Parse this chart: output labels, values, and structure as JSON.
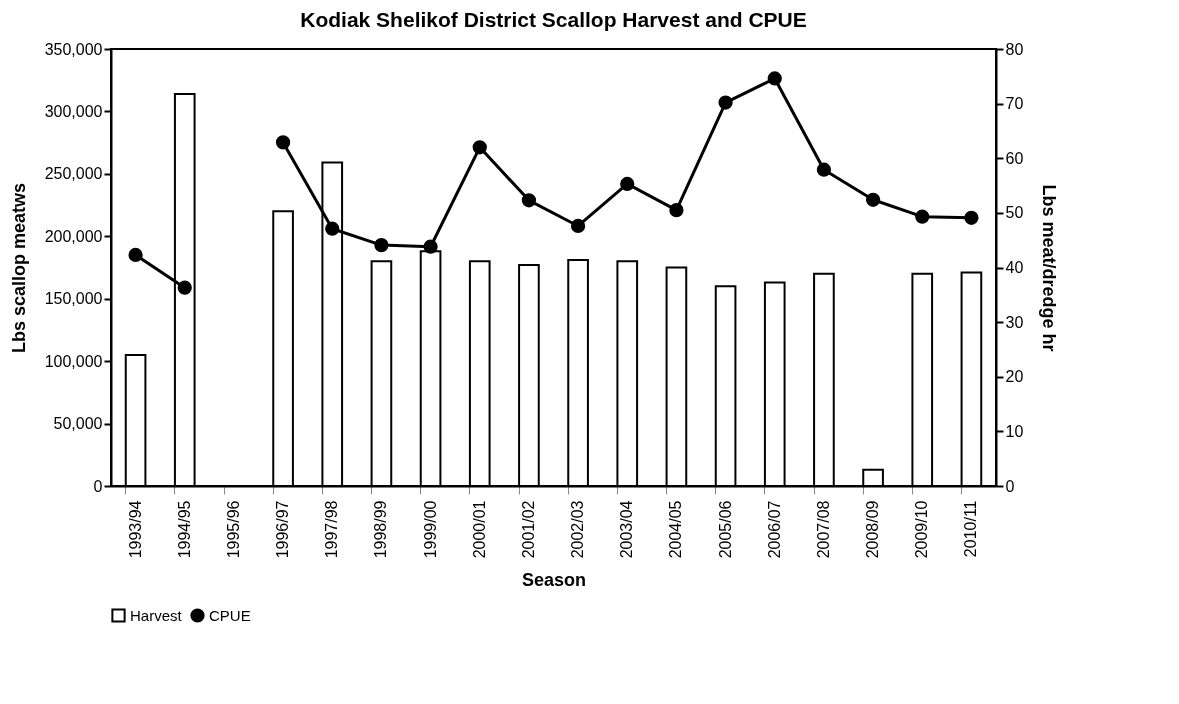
{
  "chart_data": {
    "type": "bar",
    "title": "Kodiak Shelikof District Scallop Harvest and CPUE",
    "xlabel": "Season",
    "ylabel": "Lbs scallop meatws",
    "y2label": "Lbs meat/dredge hr",
    "categories": [
      "1993/94",
      "1994/95",
      "1995/96",
      "1996/97",
      "1997/98",
      "1998/99",
      "1999/00",
      "2000/01",
      "2001/02",
      "2002/03",
      "2003/04",
      "2004/05",
      "2005/06",
      "2006/07",
      "2007/08",
      "2008/09",
      "2009/10",
      "2010/11"
    ],
    "series": [
      {
        "name": "Harvest",
        "color": "#ffffff",
        "values": [
          105000,
          314000,
          null,
          220000,
          259000,
          180000,
          188000,
          180000,
          177000,
          181000,
          180000,
          175000,
          160000,
          163000,
          170000,
          13000,
          170000,
          171000
        ]
      },
      {
        "name": "CPUE",
        "type": "line",
        "axis": "y2",
        "color": "#000000",
        "values": [
          42.3,
          36.3,
          null,
          62.9,
          47.1,
          44.1,
          43.8,
          62.0,
          52.3,
          47.6,
          55.3,
          50.5,
          70.2,
          74.6,
          57.9,
          52.4,
          49.3,
          49.1
        ]
      }
    ],
    "ylim": [
      0,
      350000
    ],
    "yticks": [
      0,
      {
        "value": 50000,
        "label": "50,000"
      },
      {
        "value": 100000,
        "label": "100,000"
      },
      {
        "value": 150000,
        "label": "150,000"
      },
      {
        "value": 200000,
        "label": "200,000"
      },
      {
        "value": 250000,
        "label": "250,000"
      },
      {
        "value": 300000,
        "label": "300,000"
      },
      {
        "value": 350000,
        "label": "350,000"
      }
    ],
    "y2lim": [
      0,
      80
    ],
    "y2ticks": [
      0,
      10,
      20,
      30,
      40,
      50,
      60,
      70,
      80
    ],
    "grid": false,
    "legend": "bottom",
    "marker": "circle"
  }
}
